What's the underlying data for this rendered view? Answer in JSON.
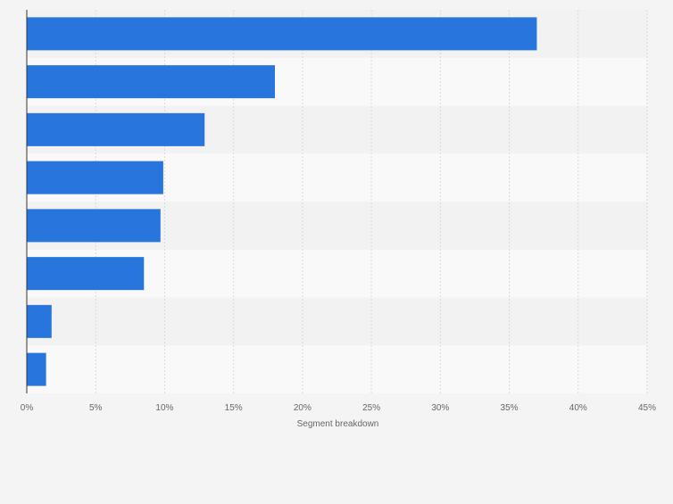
{
  "chart_data": {
    "type": "bar",
    "orientation": "horizontal",
    "categories": [
      "",
      "",
      "",
      "",
      "",
      "",
      "",
      ""
    ],
    "values": [
      37.0,
      18.0,
      12.9,
      9.9,
      9.7,
      8.5,
      1.8,
      1.4
    ],
    "xlabel": "Segment breakdown",
    "xlim": [
      0,
      45
    ],
    "ticks": [
      "0%",
      "5%",
      "10%",
      "15%",
      "20%",
      "25%",
      "30%",
      "35%",
      "40%",
      "45%"
    ],
    "tick_values": [
      0,
      5,
      10,
      15,
      20,
      25,
      30,
      35,
      40,
      45
    ],
    "grid": true,
    "colors": {
      "bar": "#2876dd",
      "band_dark": "#f2f2f2",
      "band_light": "#f9f9f9",
      "gridline": "#d9d9d9",
      "axis": "#333333",
      "tick_text": "#666666",
      "page_bg": "#f4f4f4"
    }
  }
}
